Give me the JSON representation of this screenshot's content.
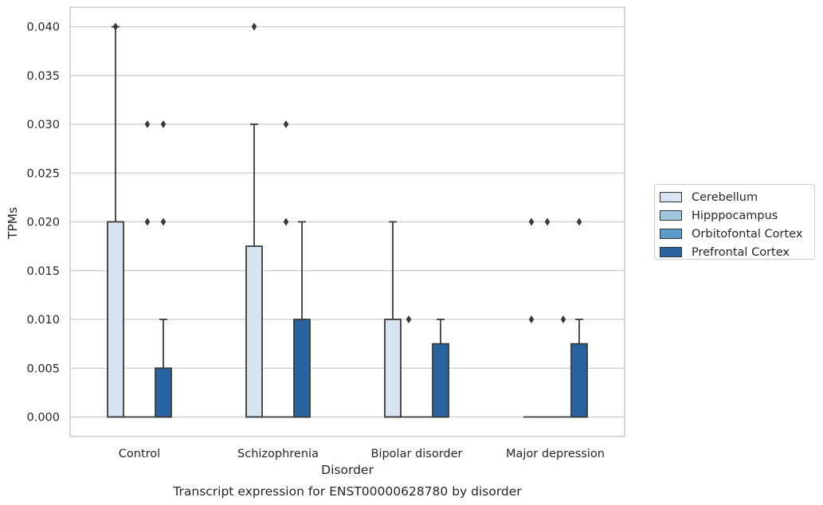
{
  "chart_data": {
    "type": "box",
    "title": "Transcript expression for ENST00000628780 by disorder",
    "xlabel": "Disorder",
    "ylabel": "TPMs",
    "categories": [
      "Control",
      "Schizophrenia",
      "Bipolar disorder",
      "Major depression"
    ],
    "ylim": [
      -0.002,
      0.042
    ],
    "yticks": [
      "0.000",
      "0.005",
      "0.010",
      "0.015",
      "0.020",
      "0.025",
      "0.030",
      "0.035",
      "0.040"
    ],
    "ytick_values": [
      0.0,
      0.005,
      0.01,
      0.015,
      0.02,
      0.025,
      0.03,
      0.035,
      0.04
    ],
    "grid": "horizontal",
    "legend_position": "right",
    "series": [
      {
        "name": "Cerebellum",
        "color": "#d7e4f1",
        "boxes": [
          {
            "q1": 0.0,
            "median": 0.0,
            "q3": 0.02,
            "whisker_low": 0.0,
            "whisker_high": 0.04,
            "outliers": [
              0.04
            ]
          },
          {
            "q1": 0.0,
            "median": 0.0,
            "q3": 0.0175,
            "whisker_low": 0.0,
            "whisker_high": 0.03,
            "outliers": [
              0.04
            ]
          },
          {
            "q1": 0.0,
            "median": 0.0,
            "q3": 0.01,
            "whisker_low": 0.0,
            "whisker_high": 0.02,
            "outliers": []
          },
          {
            "q1": 0.0,
            "median": 0.0,
            "q3": 0.0,
            "whisker_low": 0.0,
            "whisker_high": 0.0,
            "outliers": [
              0.02,
              0.01
            ]
          }
        ]
      },
      {
        "name": "Hipppocampus",
        "color": "#9fc5df",
        "boxes": [
          {
            "q1": 0.0,
            "median": 0.0,
            "q3": 0.0,
            "whisker_low": 0.0,
            "whisker_high": 0.0,
            "outliers": []
          },
          {
            "q1": 0.0,
            "median": 0.0,
            "q3": 0.0,
            "whisker_low": 0.0,
            "whisker_high": 0.0,
            "outliers": []
          },
          {
            "q1": 0.0,
            "median": 0.0,
            "q3": 0.0,
            "whisker_low": 0.0,
            "whisker_high": 0.0,
            "outliers": [
              0.01
            ]
          },
          {
            "q1": 0.0,
            "median": 0.0,
            "q3": 0.0,
            "whisker_low": 0.0,
            "whisker_high": 0.0,
            "outliers": [
              0.02
            ]
          }
        ]
      },
      {
        "name": "Orbitofontal Cortex",
        "color": "#5a9bc9",
        "boxes": [
          {
            "q1": 0.0,
            "median": 0.0,
            "q3": 0.0,
            "whisker_low": 0.0,
            "whisker_high": 0.0,
            "outliers": [
              0.03,
              0.02
            ]
          },
          {
            "q1": 0.0,
            "median": 0.0,
            "q3": 0.0,
            "whisker_low": 0.0,
            "whisker_high": 0.0,
            "outliers": [
              0.03,
              0.02
            ]
          },
          {
            "q1": 0.0,
            "median": 0.0,
            "q3": 0.0,
            "whisker_low": 0.0,
            "whisker_high": 0.0,
            "outliers": []
          },
          {
            "q1": 0.0,
            "median": 0.0,
            "q3": 0.0,
            "whisker_low": 0.0,
            "whisker_high": 0.0,
            "outliers": [
              0.01
            ]
          }
        ]
      },
      {
        "name": "Prefrontal Cortex",
        "color": "#2a64a0",
        "boxes": [
          {
            "q1": 0.0,
            "median": 0.0,
            "q3": 0.005,
            "whisker_low": 0.0,
            "whisker_high": 0.01,
            "outliers": [
              0.03,
              0.02
            ]
          },
          {
            "q1": 0.0,
            "median": 0.0,
            "q3": 0.01,
            "whisker_low": 0.0,
            "whisker_high": 0.02,
            "outliers": []
          },
          {
            "q1": 0.0,
            "median": 0.0,
            "q3": 0.0075,
            "whisker_low": 0.0,
            "whisker_high": 0.01,
            "outliers": []
          },
          {
            "q1": 0.0,
            "median": 0.0,
            "q3": 0.0075,
            "whisker_low": 0.0,
            "whisker_high": 0.01,
            "outliers": [
              0.02
            ]
          }
        ]
      }
    ]
  }
}
